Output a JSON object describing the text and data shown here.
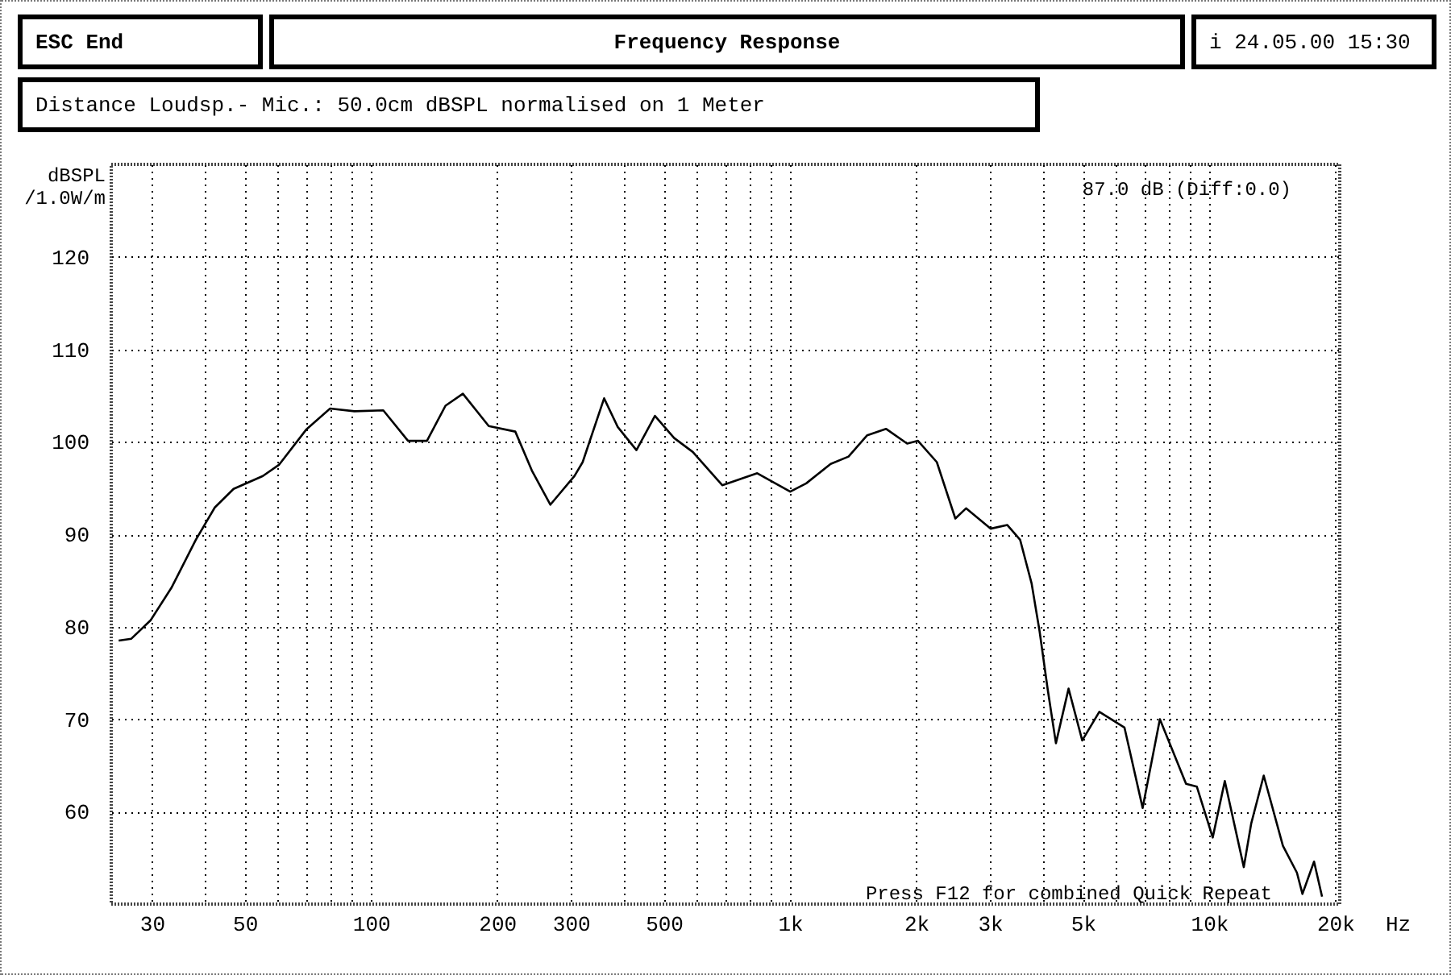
{
  "chart_data": {
    "type": "line",
    "title": "Frequency Response",
    "subtitle": "Distance Loudsp.- Mic.: 50.0cm dBSPL normalised on 1 Meter",
    "ylabel": "dBSPL /1.0W/m",
    "annotations": [
      "ESC End",
      "i 24.05.00 15:30",
      "87.0 dB (Diff:0.0)",
      "Press F12 for combined Quick Repeat"
    ],
    "log": "x",
    "grid": true,
    "line_style": "solid",
    "xlim": [
      24,
      20500
    ],
    "ylim": [
      50,
      130
    ],
    "xticks": [
      30,
      {
        "value": 40,
        "label": null
      },
      50,
      {
        "value": 60,
        "label": null
      },
      {
        "value": 70,
        "label": null
      },
      {
        "value": 80,
        "label": null
      },
      {
        "value": 90,
        "label": null
      },
      100,
      200,
      300,
      {
        "value": 400,
        "label": null
      },
      500,
      {
        "value": 600,
        "label": null
      },
      {
        "value": 700,
        "label": null
      },
      {
        "value": 800,
        "label": null
      },
      {
        "value": 900,
        "label": null
      },
      {
        "value": 1000,
        "label": "1k"
      },
      {
        "value": 2000,
        "label": "2k"
      },
      {
        "value": 3000,
        "label": "3k"
      },
      {
        "value": 4000,
        "label": null
      },
      {
        "value": 5000,
        "label": "5k"
      },
      {
        "value": 6000,
        "label": null
      },
      {
        "value": 7000,
        "label": null
      },
      {
        "value": 8000,
        "label": null
      },
      {
        "value": 9000,
        "label": null
      },
      {
        "value": 10000,
        "label": "10k"
      },
      {
        "value": 20000,
        "label": "20k"
      }
    ],
    "xlabel": "Hz",
    "yticks": [
      60,
      70,
      80,
      90,
      100,
      110,
      120
    ],
    "series": [
      {
        "color": "#000000",
        "x": [
          25,
          26.8,
          29.8,
          33.4,
          38.2,
          42.4,
          47,
          55.2,
          60.3,
          70,
          79.9,
          91.3,
          107,
          122.6,
          136,
          150.6,
          165.7,
          191,
          221,
          242,
          268,
          306,
          320,
          360,
          388,
          430,
          476,
          529,
          586,
          689,
          835,
          1001,
          1093,
          1250,
          1379,
          1528,
          1694,
          1903,
          2020,
          2240,
          2480,
          2630,
          3010,
          3300,
          3540,
          3770,
          3940,
          4120,
          4310,
          4620,
          4980,
          5470,
          6280,
          6940,
          7630,
          8810,
          9350,
          10200,
          10900,
          12100,
          12600,
          13500,
          15000,
          16200,
          16700,
          17800,
          18600
        ],
        "values": [
          78.5,
          78.7,
          80.7,
          84.2,
          89.4,
          92.9,
          94.9,
          96.3,
          97.5,
          101.3,
          103.6,
          103.3,
          103.4,
          100.1,
          100.1,
          103.9,
          105.2,
          101.7,
          101.1,
          96.9,
          93.2,
          96.3,
          97.8,
          104.7,
          101.6,
          99.1,
          102.8,
          100.4,
          98.9,
          95.3,
          96.6,
          94.6,
          95.5,
          97.6,
          98.4,
          100.7,
          101.4,
          99.8,
          100.1,
          97.8,
          91.7,
          92.8,
          90.6,
          91.0,
          89.4,
          84.7,
          79.5,
          73.2,
          67.4,
          73.3,
          67.7,
          70.8,
          69.1,
          60.4,
          70.0,
          63.0,
          62.7,
          57.2,
          63.3,
          54.0,
          58.7,
          63.9,
          56.3,
          53.4,
          51.1,
          54.6,
          50.8
        ]
      }
    ]
  }
}
